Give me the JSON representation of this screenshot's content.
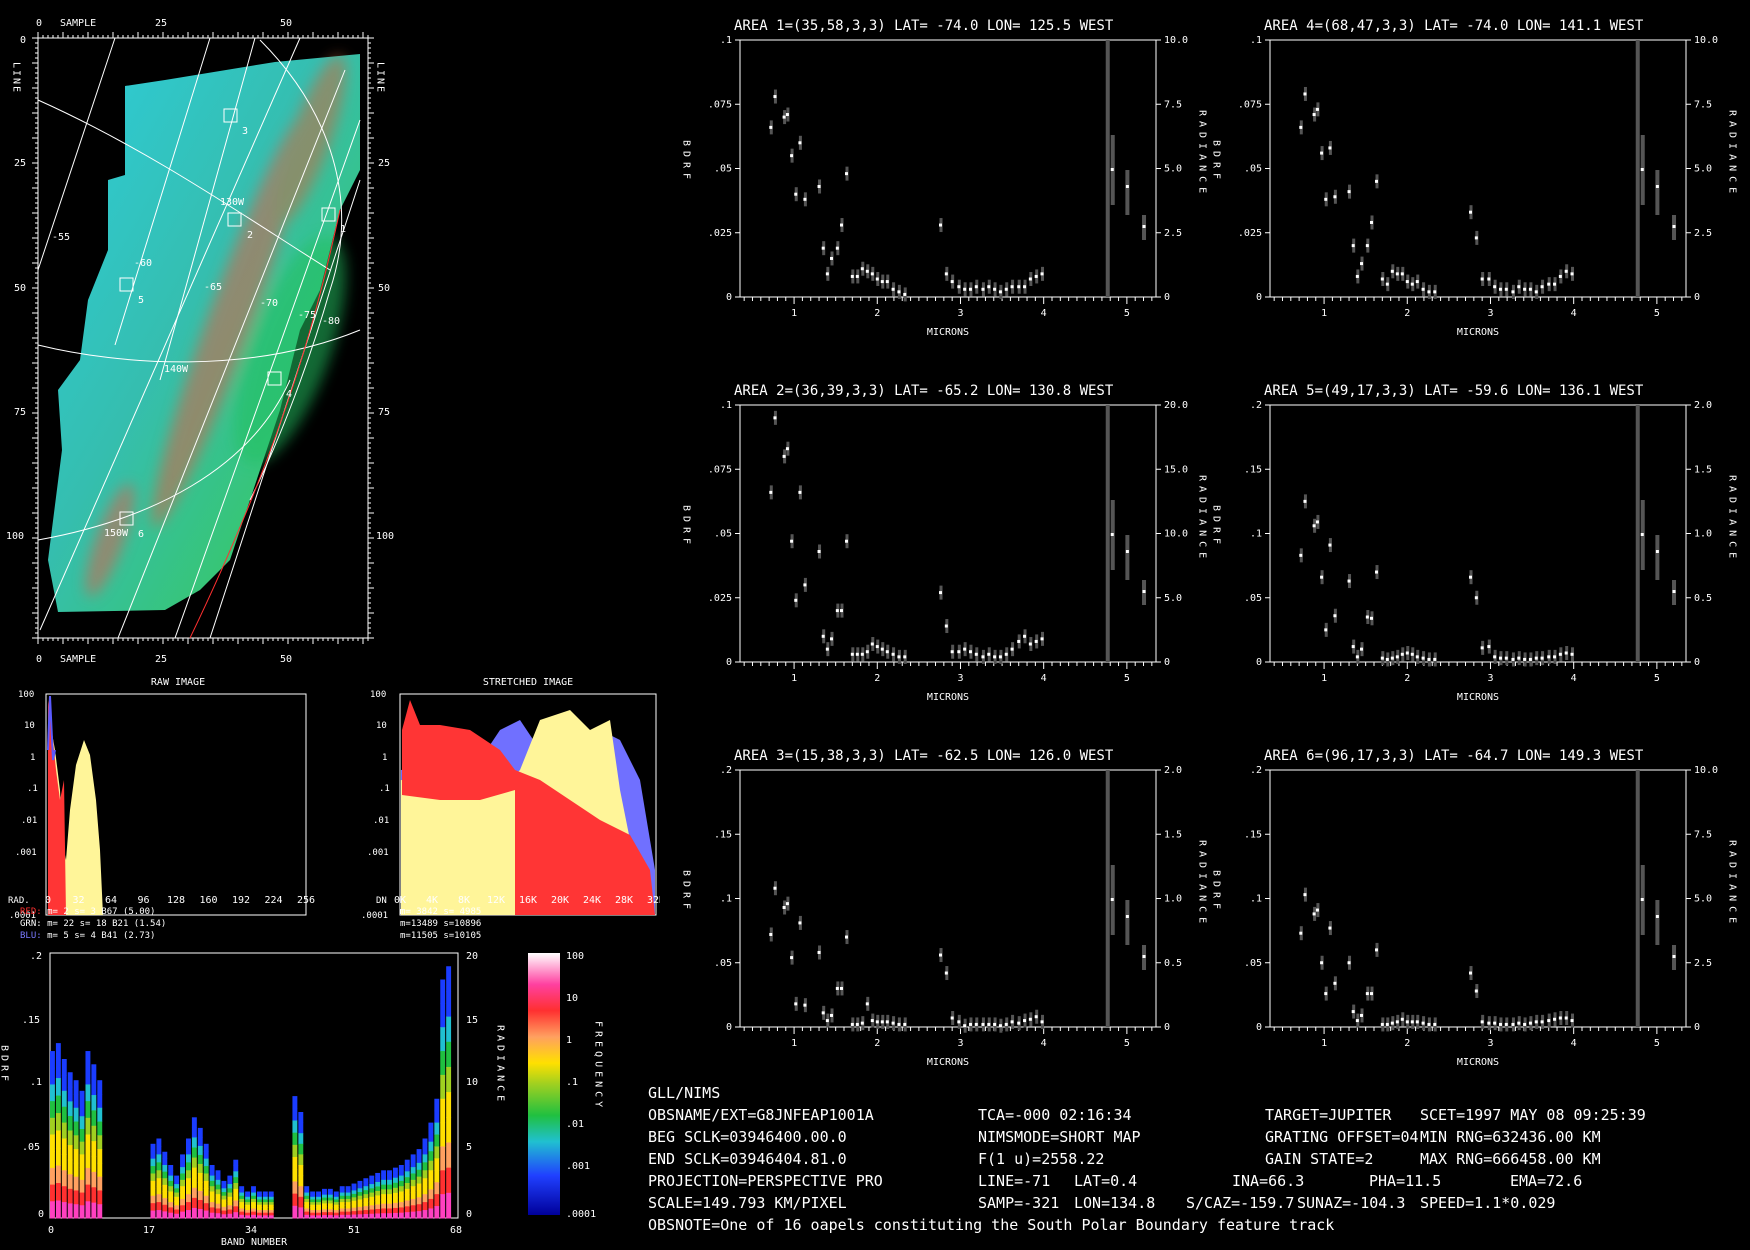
{
  "map": {
    "sample_label": "SAMPLE",
    "line_label": "LINE",
    "sample_ticks": [
      "0",
      "25",
      "50"
    ],
    "line_ticks": [
      "0",
      "25",
      "50",
      "75",
      "100"
    ],
    "lat_labels": [
      "-55",
      "-60",
      "-65",
      "-70",
      "-75",
      "-80"
    ],
    "lon_labels": [
      "130W",
      "140W",
      "150W"
    ],
    "area_numbers": [
      "1",
      "2",
      "3",
      "4",
      "5",
      "6"
    ]
  },
  "histograms": {
    "raw_title": "RAW IMAGE",
    "stretched_title": "STRETCHED IMAGE",
    "y_ticks": [
      "100",
      "10",
      "1",
      ".1",
      ".01",
      ".001",
      ".0001"
    ],
    "raw_x_prefix": "RAD.",
    "raw_x_ticks": [
      "0",
      "32",
      "64",
      "96",
      "128",
      "160",
      "192",
      "224",
      "256"
    ],
    "stretched_x_prefix": "DN",
    "stretched_x_ticks": [
      "0K",
      "4K",
      "8K",
      "12K",
      "16K",
      "20K",
      "24K",
      "28K",
      "32K"
    ],
    "raw_stats": [
      {
        "name": "RED:",
        "text": " m=    2 s=    3 B67 (5.00)",
        "color": "#ff3030"
      },
      {
        "name": "GRN:",
        "text": " m=   22 s=   18 B21 (1.54)",
        "color": "#ffffff"
      },
      {
        "name": "BLU:",
        "text": " m=    5 s=    4 B41 (2.73)",
        "color": "#7a7aff"
      }
    ],
    "stretched_stats": [
      "m= 3842 s= 4985",
      "m=13489 s=10896",
      "m=11505 s=10105"
    ]
  },
  "band_plot": {
    "left_label": "BDRF",
    "right_label": "RADIANCE",
    "freq_label": "FREQUENCY",
    "x_label": "BAND NUMBER",
    "y_ticks": [
      ".2",
      ".15",
      ".1",
      ".05",
      "0"
    ],
    "right_ticks": [
      "20",
      "15",
      "10",
      "5",
      "0"
    ],
    "x_ticks": [
      "0",
      "17",
      "34",
      "51",
      "68"
    ],
    "colorbar_ticks": [
      "100",
      "10",
      "1",
      ".1",
      ".01",
      ".001",
      ".0001"
    ]
  },
  "spectra": {
    "x_label": "MICRONS",
    "left_label": "BDRF",
    "right_label": "RADIANCE",
    "x_ticks": [
      "1",
      "2",
      "3",
      "4",
      "5"
    ],
    "panels": [
      {
        "title": "AREA 1=(35,58,3,3) LAT= -74.0 LON= 125.5 WEST",
        "y_ticks": [
          ".1",
          ".075",
          ".05",
          ".025",
          "0"
        ],
        "r_ticks": [
          "10.0",
          "7.5",
          "5.0",
          "2.5",
          "0"
        ]
      },
      {
        "title": "AREA 4=(68,47,3,3) LAT= -74.0 LON= 141.1 WEST",
        "y_ticks": [
          ".1",
          ".075",
          ".05",
          ".025",
          "0"
        ],
        "r_ticks": [
          "10.0",
          "7.5",
          "5.0",
          "2.5",
          "0"
        ]
      },
      {
        "title": "AREA 2=(36,39,3,3) LAT= -65.2 LON= 130.8 WEST",
        "y_ticks": [
          ".1",
          ".075",
          ".05",
          ".025",
          "0"
        ],
        "r_ticks": [
          "20.0",
          "15.0",
          "10.0",
          "5.0",
          "0"
        ]
      },
      {
        "title": "AREA 5=(49,17,3,3) LAT= -59.6 LON= 136.1 WEST",
        "y_ticks": [
          ".2",
          ".15",
          ".1",
          ".05",
          "0"
        ],
        "r_ticks": [
          "2.0",
          "1.5",
          "1.0",
          "0.5",
          "0"
        ]
      },
      {
        "title": "AREA 3=(15,38,3,3) LAT= -62.5 LON= 126.0 WEST",
        "y_ticks": [
          ".2",
          ".15",
          ".1",
          ".05",
          "0"
        ],
        "r_ticks": [
          "2.0",
          "1.5",
          "1.0",
          "0.5",
          "0"
        ]
      },
      {
        "title": "AREA 6=(96,17,3,3) LAT= -64.7 LON= 149.3 WEST",
        "y_ticks": [
          ".2",
          ".15",
          ".1",
          ".05",
          "0"
        ],
        "r_ticks": [
          "10.0",
          "7.5",
          "5.0",
          "2.5",
          "0"
        ]
      }
    ]
  },
  "info": {
    "instrument": "GLL/NIMS",
    "rows": [
      [
        "OBSNAME/EXT=G8JNFEAP1001A",
        "TCA=-000 02:16:34",
        "TARGET=JUPITER",
        "SCET=1997 MAY 08 09:25:39"
      ],
      [
        "BEG SCLK=03946400.00.0",
        "NIMSMODE=SHORT MAP",
        "GRATING OFFSET=04",
        "MIN RNG=632436.00 KM"
      ],
      [
        "END SCLK=03946404.81.0",
        "F(1 u)=2558.22",
        "GAIN STATE=2",
        "MAX RNG=666458.00 KM"
      ]
    ],
    "projection": "PROJECTION=PERSPECTIVE PRO",
    "line": "LINE=-71",
    "lat": "LAT=0.4",
    "ina": "INA=66.3",
    "pha": "PHA=11.5",
    "ema": "EMA=72.6",
    "scale": "SCALE=149.793 KM/PIXEL",
    "samp": "SAMP=-321",
    "lon": "LON=134.8",
    "scaz": "S/CAZ=-159.7",
    "sunaz": "SUNAZ=-104.3",
    "speed": "SPEED=1.1*0.029",
    "obsnote": "OBSNOTE=One of 16 oapels constituting the South Polar Boundary feature track"
  },
  "chart_data": [
    {
      "type": "scatter",
      "title": "AREA 1=(35,58,3,3) LAT= -74.0 LON= 125.5 WEST",
      "xlabel": "MICRONS",
      "ylabel": "BDRF",
      "ylim": [
        0,
        0.1
      ],
      "x": [
        0.72,
        0.77,
        0.88,
        0.92,
        0.97,
        1.02,
        1.07,
        1.13,
        1.3,
        1.35,
        1.4,
        1.45,
        1.52,
        1.57,
        1.63,
        1.7,
        1.76,
        1.82,
        1.88,
        1.94,
        2.0,
        2.06,
        2.12,
        2.19,
        2.26,
        2.33,
        2.76,
        2.83,
        2.9,
        2.98,
        3.05,
        3.12,
        3.19,
        3.27,
        3.34,
        3.41,
        3.48,
        3.55,
        3.62,
        3.7,
        3.77,
        3.84,
        3.91,
        3.98
      ],
      "y": [
        0.066,
        0.078,
        0.07,
        0.071,
        0.055,
        0.04,
        0.06,
        0.038,
        0.043,
        0.019,
        0.009,
        0.015,
        0.019,
        0.028,
        0.048,
        0.008,
        0.008,
        0.011,
        0.01,
        0.009,
        0.007,
        0.006,
        0.006,
        0.003,
        0.002,
        0.001,
        0.028,
        0.009,
        0.006,
        0.004,
        0.003,
        0.003,
        0.004,
        0.003,
        0.004,
        0.003,
        0.002,
        0.003,
        0.004,
        0.004,
        0.004,
        0.007,
        0.008,
        0.009
      ]
    },
    {
      "type": "scatter",
      "title": "AREA 4=(68,47,3,3) LAT= -74.0 LON= 141.1 WEST",
      "xlabel": "MICRONS",
      "ylabel": "BDRF",
      "ylim": [
        0,
        0.1
      ],
      "x": [
        0.72,
        0.77,
        0.88,
        0.92,
        0.97,
        1.02,
        1.07,
        1.13,
        1.3,
        1.35,
        1.4,
        1.45,
        1.52,
        1.57,
        1.63,
        1.7,
        1.76,
        1.82,
        1.88,
        1.94,
        2.0,
        2.06,
        2.12,
        2.19,
        2.26,
        2.33,
        2.76,
        2.83,
        2.9,
        2.98,
        3.05,
        3.12,
        3.19,
        3.27,
        3.34,
        3.41,
        3.48,
        3.55,
        3.62,
        3.7,
        3.77,
        3.84,
        3.91,
        3.98
      ],
      "y": [
        0.066,
        0.079,
        0.071,
        0.073,
        0.056,
        0.038,
        0.058,
        0.039,
        0.041,
        0.02,
        0.008,
        0.013,
        0.02,
        0.029,
        0.045,
        0.007,
        0.005,
        0.01,
        0.009,
        0.009,
        0.006,
        0.005,
        0.006,
        0.003,
        0.002,
        0.002,
        0.033,
        0.023,
        0.007,
        0.007,
        0.004,
        0.003,
        0.003,
        0.002,
        0.004,
        0.003,
        0.003,
        0.002,
        0.004,
        0.005,
        0.005,
        0.008,
        0.01,
        0.009
      ]
    },
    {
      "type": "scatter",
      "title": "AREA 2=(36,39,3,3) LAT= -65.2 LON= 130.8 WEST",
      "xlabel": "MICRONS",
      "ylabel": "BDRF",
      "ylim": [
        0,
        0.1
      ],
      "x": [
        0.72,
        0.77,
        0.88,
        0.92,
        0.97,
        1.02,
        1.07,
        1.13,
        1.3,
        1.35,
        1.4,
        1.45,
        1.52,
        1.57,
        1.63,
        1.7,
        1.76,
        1.82,
        1.88,
        1.94,
        2.0,
        2.06,
        2.12,
        2.19,
        2.26,
        2.33,
        2.76,
        2.83,
        2.9,
        2.98,
        3.05,
        3.12,
        3.19,
        3.27,
        3.34,
        3.41,
        3.48,
        3.55,
        3.62,
        3.7,
        3.77,
        3.84,
        3.91,
        3.98
      ],
      "y": [
        0.066,
        0.095,
        0.08,
        0.083,
        0.047,
        0.024,
        0.066,
        0.03,
        0.043,
        0.01,
        0.005,
        0.009,
        0.02,
        0.02,
        0.047,
        0.003,
        0.003,
        0.003,
        0.004,
        0.007,
        0.006,
        0.005,
        0.004,
        0.003,
        0.002,
        0.002,
        0.027,
        0.014,
        0.004,
        0.004,
        0.005,
        0.004,
        0.003,
        0.002,
        0.003,
        0.002,
        0.002,
        0.003,
        0.005,
        0.008,
        0.01,
        0.007,
        0.008,
        0.009
      ]
    },
    {
      "type": "scatter",
      "title": "AREA 5=(49,17,3,3) LAT= -59.6 LON= 136.1 WEST",
      "xlabel": "MICRONS",
      "ylabel": "BDRF",
      "ylim": [
        0,
        0.2
      ],
      "x": [
        0.72,
        0.77,
        0.88,
        0.92,
        0.97,
        1.02,
        1.07,
        1.13,
        1.3,
        1.35,
        1.4,
        1.45,
        1.52,
        1.57,
        1.63,
        1.7,
        1.76,
        1.82,
        1.88,
        1.94,
        2.0,
        2.06,
        2.12,
        2.19,
        2.26,
        2.33,
        2.76,
        2.83,
        2.9,
        2.98,
        3.05,
        3.12,
        3.19,
        3.27,
        3.34,
        3.41,
        3.48,
        3.55,
        3.62,
        3.7,
        3.77,
        3.84,
        3.91,
        3.98
      ],
      "y": [
        0.083,
        0.125,
        0.106,
        0.109,
        0.066,
        0.025,
        0.091,
        0.036,
        0.063,
        0.012,
        0.004,
        0.01,
        0.035,
        0.034,
        0.07,
        0.003,
        0.002,
        0.003,
        0.004,
        0.006,
        0.007,
        0.006,
        0.004,
        0.003,
        0.002,
        0.002,
        0.066,
        0.05,
        0.011,
        0.012,
        0.004,
        0.003,
        0.003,
        0.002,
        0.003,
        0.002,
        0.002,
        0.003,
        0.003,
        0.004,
        0.004,
        0.006,
        0.007,
        0.006
      ]
    },
    {
      "type": "scatter",
      "title": "AREA 3=(15,38,3,3) LAT= -62.5 LON= 126.0 WEST",
      "xlabel": "MICRONS",
      "ylabel": "BDRF",
      "ylim": [
        0,
        0.2
      ],
      "x": [
        0.72,
        0.77,
        0.88,
        0.92,
        0.97,
        1.02,
        1.07,
        1.13,
        1.3,
        1.35,
        1.4,
        1.45,
        1.52,
        1.57,
        1.63,
        1.7,
        1.76,
        1.82,
        1.88,
        1.94,
        2.0,
        2.06,
        2.12,
        2.19,
        2.26,
        2.33,
        2.76,
        2.83,
        2.9,
        2.98,
        3.05,
        3.12,
        3.19,
        3.27,
        3.34,
        3.41,
        3.48,
        3.55,
        3.62,
        3.7,
        3.77,
        3.84,
        3.91,
        3.98
      ],
      "y": [
        0.072,
        0.108,
        0.093,
        0.096,
        0.054,
        0.018,
        0.081,
        0.017,
        0.058,
        0.011,
        0.005,
        0.009,
        0.03,
        0.03,
        0.07,
        0.002,
        0.002,
        0.003,
        0.018,
        0.005,
        0.004,
        0.004,
        0.004,
        0.003,
        0.002,
        0.002,
        0.056,
        0.042,
        0.007,
        0.004,
        0.001,
        0.002,
        0.002,
        0.002,
        0.002,
        0.002,
        0.001,
        0.002,
        0.004,
        0.003,
        0.005,
        0.006,
        0.008,
        0.004
      ]
    },
    {
      "type": "scatter",
      "title": "AREA 6=(96,17,3,3) LAT= -64.7 LON= 149.3 WEST",
      "xlabel": "MICRONS",
      "ylabel": "BDRF",
      "ylim": [
        0,
        0.2
      ],
      "x": [
        0.72,
        0.77,
        0.88,
        0.92,
        0.97,
        1.02,
        1.07,
        1.13,
        1.3,
        1.35,
        1.4,
        1.45,
        1.52,
        1.57,
        1.63,
        1.7,
        1.76,
        1.82,
        1.88,
        1.94,
        2.0,
        2.06,
        2.12,
        2.19,
        2.26,
        2.33,
        2.76,
        2.83,
        2.9,
        2.98,
        3.05,
        3.12,
        3.19,
        3.27,
        3.34,
        3.41,
        3.48,
        3.55,
        3.62,
        3.7,
        3.77,
        3.84,
        3.91,
        3.98
      ],
      "y": [
        0.073,
        0.103,
        0.088,
        0.091,
        0.05,
        0.026,
        0.077,
        0.034,
        0.05,
        0.012,
        0.005,
        0.009,
        0.026,
        0.026,
        0.06,
        0.002,
        0.002,
        0.003,
        0.004,
        0.006,
        0.004,
        0.004,
        0.004,
        0.003,
        0.002,
        0.002,
        0.042,
        0.028,
        0.004,
        0.003,
        0.003,
        0.002,
        0.002,
        0.002,
        0.003,
        0.002,
        0.003,
        0.004,
        0.004,
        0.005,
        0.006,
        0.007,
        0.007,
        0.005
      ]
    }
  ]
}
